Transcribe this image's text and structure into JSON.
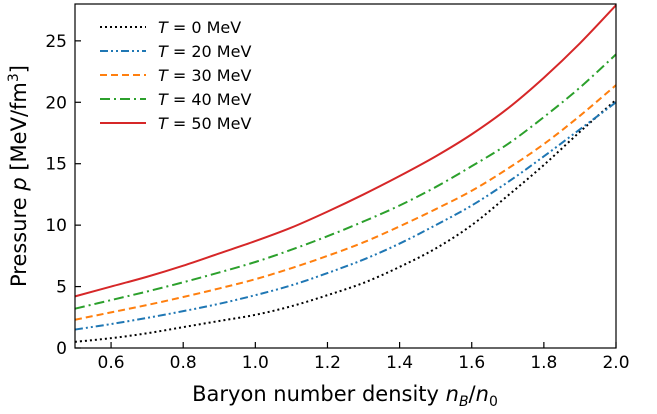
{
  "chart_data": {
    "type": "line",
    "xlabel": {
      "main": "Baryon number density ",
      "num": "n",
      "num_sub": "B",
      "slash": "/",
      "den": "n",
      "den_sub": "0"
    },
    "ylabel": {
      "main": "Pressure ",
      "sym": "p",
      "unit": " [MeV/fm",
      "unit_sup": "3",
      "unit_close": "]"
    },
    "xlim": [
      0.5,
      2.0
    ],
    "ylim": [
      0,
      28
    ],
    "x_ticks": [
      0.6,
      0.8,
      1.0,
      1.2,
      1.4,
      1.6,
      1.8,
      2.0
    ],
    "x_tick_labels": [
      "0.6",
      "0.8",
      "1.0",
      "1.2",
      "1.4",
      "1.6",
      "1.8",
      "2.0"
    ],
    "y_ticks": [
      0,
      5,
      10,
      15,
      20,
      25
    ],
    "y_tick_labels": [
      "0",
      "5",
      "10",
      "15",
      "20",
      "25"
    ],
    "grid": false,
    "legend_position": "top-left",
    "x": [
      0.5,
      0.6,
      0.7,
      0.8,
      0.9,
      1.0,
      1.1,
      1.2,
      1.3,
      1.4,
      1.5,
      1.6,
      1.7,
      1.8,
      1.9,
      2.0
    ],
    "series": [
      {
        "name": "T = 0 MeV",
        "legend": {
          "sym": "T",
          "rest": " = 0 MeV"
        },
        "color": "#000000",
        "dash": "2,3",
        "values": [
          0.5,
          0.8,
          1.2,
          1.7,
          2.2,
          2.7,
          3.4,
          4.3,
          5.3,
          6.6,
          8.1,
          10.0,
          12.4,
          14.9,
          17.6,
          20.2
        ]
      },
      {
        "name": "T = 20 MeV",
        "legend": {
          "sym": "T",
          "rest": " = 20 MeV"
        },
        "color": "#1f77b4",
        "dash": "8,3,2,3,2,3",
        "values": [
          1.5,
          1.95,
          2.45,
          3.0,
          3.6,
          4.3,
          5.1,
          6.1,
          7.2,
          8.5,
          10.0,
          11.6,
          13.5,
          15.6,
          17.8,
          20.0
        ]
      },
      {
        "name": "T = 30 MeV",
        "legend": {
          "sym": "T",
          "rest": " = 30 MeV"
        },
        "color": "#ff7f0e",
        "dash": "7,4",
        "values": [
          2.3,
          2.9,
          3.5,
          4.15,
          4.85,
          5.6,
          6.5,
          7.5,
          8.6,
          9.9,
          11.3,
          12.8,
          14.6,
          16.6,
          18.9,
          21.4
        ]
      },
      {
        "name": "T = 40 MeV",
        "legend": {
          "sym": "T",
          "rest": " = 40 MeV"
        },
        "color": "#2ca02c",
        "dash": "10,4,2,4",
        "values": [
          3.2,
          3.9,
          4.6,
          5.35,
          6.15,
          7.0,
          8.0,
          9.1,
          10.3,
          11.6,
          13.1,
          14.8,
          16.6,
          18.8,
          21.2,
          23.9
        ]
      },
      {
        "name": "T = 50 MeV",
        "legend": {
          "sym": "T",
          "rest": " = 50 MeV"
        },
        "color": "#d62728",
        "dash": "",
        "values": [
          4.2,
          5.0,
          5.8,
          6.7,
          7.7,
          8.7,
          9.8,
          11.1,
          12.5,
          14.0,
          15.6,
          17.4,
          19.5,
          22.0,
          24.8,
          27.9
        ]
      }
    ]
  }
}
